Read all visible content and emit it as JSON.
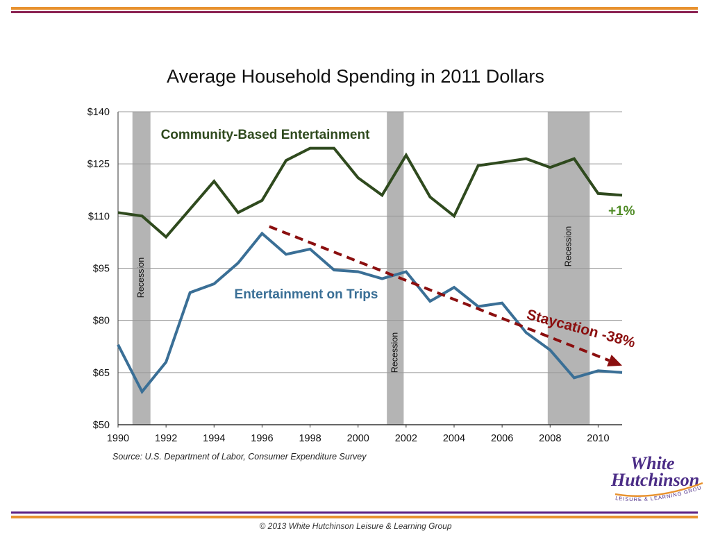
{
  "colors": {
    "top_bar_orange": "#E8922F",
    "top_bar_purple": "#8B2252",
    "bottom_bar_purple": "#5A1E82",
    "bottom_bar_orange": "#E8922F",
    "community_series": "#2F4A1E",
    "trips_series": "#3A6F96",
    "trend_arrow": "#8B0F0F",
    "recession_band": "#B4B4B4",
    "plus_label": "#4E8A24",
    "logo_purple": "#4B2C86",
    "logo_orange": "#E8922F"
  },
  "chart_data": {
    "type": "line",
    "title": "Average Household Spending in 2011 Dollars",
    "x": [
      1990,
      1991,
      1992,
      1993,
      1994,
      1995,
      1996,
      1997,
      1998,
      1999,
      2000,
      2001,
      2002,
      2003,
      2004,
      2005,
      2006,
      2007,
      2008,
      2009,
      2010,
      2011
    ],
    "xlim": [
      1990,
      2011
    ],
    "ylim": [
      50,
      140
    ],
    "x_ticks": [
      1990,
      1992,
      1994,
      1996,
      1998,
      2000,
      2002,
      2004,
      2006,
      2008,
      2010
    ],
    "y_ticks": [
      {
        "value": 50,
        "label": "$50"
      },
      {
        "value": 65,
        "label": "$65"
      },
      {
        "value": 80,
        "label": "$80"
      },
      {
        "value": 95,
        "label": "$95"
      },
      {
        "value": 110,
        "label": "$110"
      },
      {
        "value": 125,
        "label": "$125"
      },
      {
        "value": 140,
        "label": "$140"
      }
    ],
    "grid": true,
    "series": [
      {
        "name": "Community-Based Entertainment",
        "values": [
          111,
          110,
          104,
          112,
          120,
          111,
          114.5,
          126,
          129.5,
          129.5,
          121,
          116,
          127.5,
          115.5,
          110,
          124.5,
          125.5,
          126.5,
          124,
          126.5,
          116.5,
          116
        ]
      },
      {
        "name": "Entertainment on Trips",
        "values": [
          73,
          59.5,
          68,
          88,
          90.5,
          96.5,
          105,
          99,
          100.5,
          94.5,
          94,
          92,
          94,
          85.5,
          89.5,
          84,
          85,
          76.5,
          71.5,
          63.5,
          65.5,
          65
        ]
      }
    ],
    "recessions": [
      {
        "start": 1990.6,
        "end": 1991.35,
        "label": "Recession"
      },
      {
        "start": 2001.2,
        "end": 2001.9,
        "label": "Recession"
      },
      {
        "start": 2007.9,
        "end": 2009.65,
        "label": "Recession"
      }
    ],
    "annotations": {
      "community_change": "+1%",
      "trips_change": "Staycation -38%"
    },
    "trend_arrow": {
      "start": [
        1996.3,
        107
      ],
      "end": [
        2011,
        67
      ]
    },
    "source": "Source: U.S. Department of Labor, Consumer Expenditure Survey"
  },
  "logo": {
    "line1": "White",
    "line2": "Hutchinson",
    "tagline": "LEISURE & LEARNING GROUP"
  },
  "footer": {
    "copyright": "© 2013 White Hutchinson Leisure & Learning Group"
  }
}
